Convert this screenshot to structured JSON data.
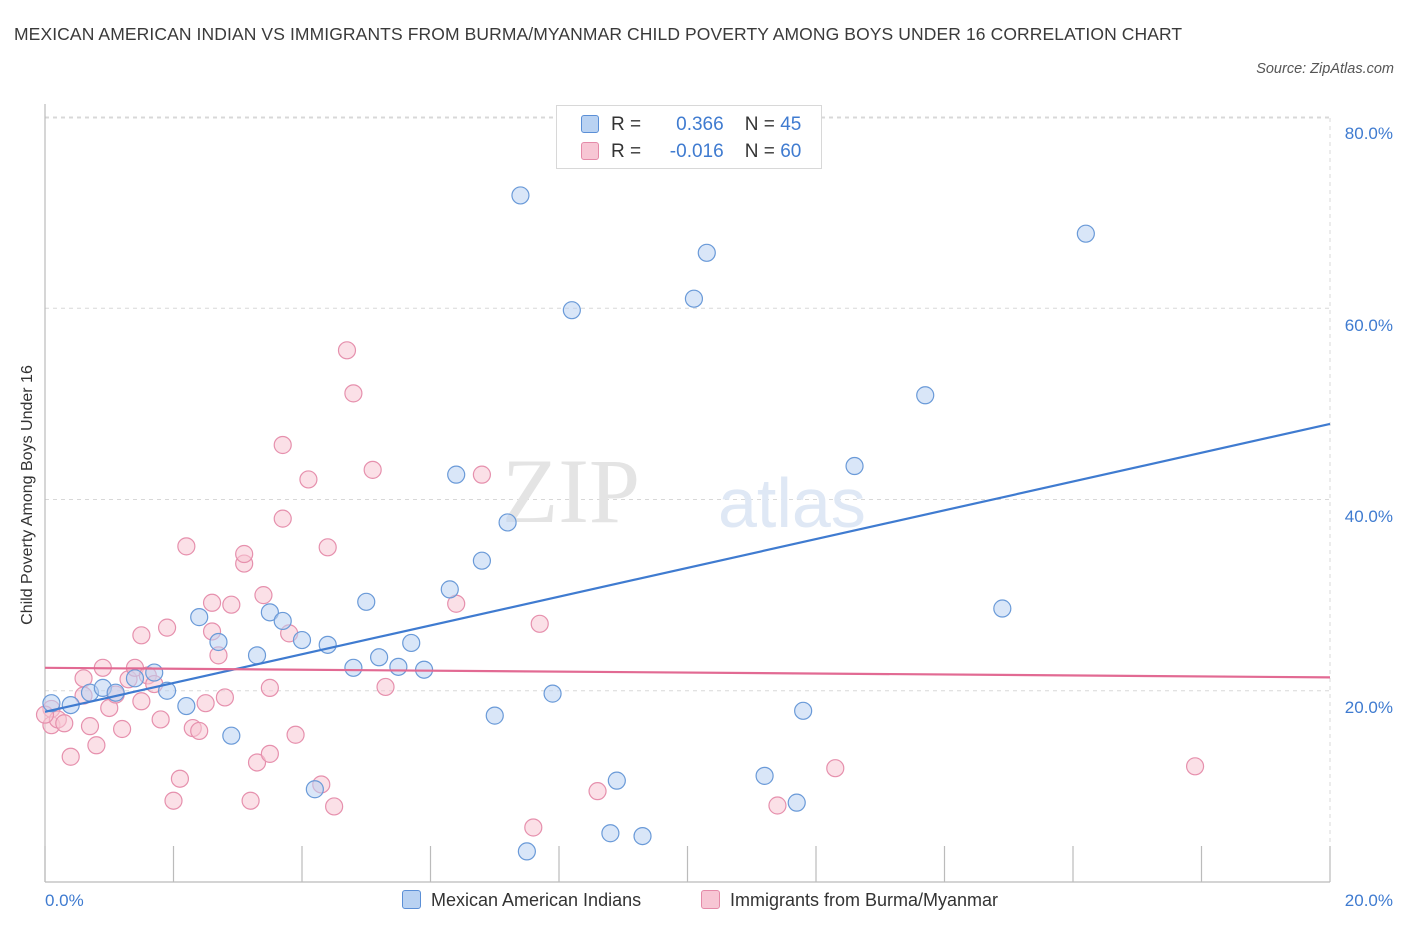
{
  "title": "MEXICAN AMERICAN INDIAN VS IMMIGRANTS FROM BURMA/MYANMAR CHILD POVERTY AMONG BOYS UNDER 16 CORRELATION CHART",
  "source": "Source: ZipAtlas.com",
  "watermark": {
    "zip": "ZIP",
    "atlas": "atlas"
  },
  "colors": {
    "blue": "#3f7bd0",
    "blue_fill": "#b9d2f2",
    "pink": "#e26a93",
    "pink_fill": "#f7c6d4",
    "grid": "#d8d8d8"
  },
  "legend_top": {
    "rows": [
      {
        "r_label": "R =",
        "r_value": "0.366",
        "n_label": "N =",
        "n_value": "45"
      },
      {
        "r_label": "R =",
        "r_value": "-0.016",
        "n_label": "N =",
        "n_value": "60"
      }
    ]
  },
  "legend_bottom": [
    "Mexican American Indians",
    "Immigrants from Burma/Myanmar"
  ],
  "chart_data": {
    "type": "scatter",
    "title": "MEXICAN AMERICAN INDIAN VS IMMIGRANTS FROM BURMA/MYANMAR CHILD POVERTY AMONG BOYS UNDER 16 CORRELATION CHART",
    "xlabel": "",
    "ylabel": "Child Poverty Among Boys Under 16",
    "xlim": [
      0,
      20
    ],
    "ylim": [
      0,
      80
    ],
    "x_tick_labels": [
      "0.0%",
      "20.0%"
    ],
    "y_tick_labels": [
      "20.0%",
      "40.0%",
      "60.0%",
      "80.0%"
    ],
    "y_ticks": [
      20,
      40,
      60,
      80
    ],
    "grid": true,
    "legend_position": "top-center",
    "series": [
      {
        "name": "Mexican American Indians",
        "color": "#3f7bd0",
        "trend": {
          "x": [
            0,
            20
          ],
          "y": [
            17.8,
            47.9
          ]
        },
        "points": [
          [
            0.1,
            18.7
          ],
          [
            0.4,
            18.5
          ],
          [
            0.7,
            19.8
          ],
          [
            0.9,
            20.3
          ],
          [
            1.1,
            19.8
          ],
          [
            1.4,
            21.3
          ],
          [
            1.7,
            21.9
          ],
          [
            1.9,
            20.0
          ],
          [
            2.2,
            18.4
          ],
          [
            2.4,
            27.7
          ],
          [
            2.7,
            25.1
          ],
          [
            2.9,
            15.3
          ],
          [
            3.3,
            23.7
          ],
          [
            3.5,
            28.2
          ],
          [
            3.7,
            27.3
          ],
          [
            4.0,
            25.3
          ],
          [
            4.2,
            9.7
          ],
          [
            4.4,
            24.8
          ],
          [
            4.8,
            22.4
          ],
          [
            5.0,
            29.3
          ],
          [
            5.2,
            23.5
          ],
          [
            5.5,
            22.5
          ],
          [
            5.7,
            25.0
          ],
          [
            5.9,
            22.2
          ],
          [
            6.3,
            30.6
          ],
          [
            6.4,
            42.6
          ],
          [
            6.8,
            33.6
          ],
          [
            7.0,
            17.4
          ],
          [
            7.2,
            37.6
          ],
          [
            7.4,
            71.8
          ],
          [
            7.5,
            3.2
          ],
          [
            7.9,
            19.7
          ],
          [
            8.2,
            59.8
          ],
          [
            8.8,
            5.1
          ],
          [
            8.9,
            10.6
          ],
          [
            9.3,
            4.8
          ],
          [
            10.1,
            61.0
          ],
          [
            10.3,
            65.8
          ],
          [
            11.2,
            11.1
          ],
          [
            11.7,
            8.3
          ],
          [
            11.8,
            17.9
          ],
          [
            12.6,
            43.5
          ],
          [
            13.7,
            50.9
          ],
          [
            14.9,
            28.6
          ],
          [
            16.2,
            67.8
          ]
        ]
      },
      {
        "name": "Immigrants from Burma/Myanmar",
        "color": "#e26a93",
        "trend": {
          "x": [
            0,
            20
          ],
          "y": [
            22.4,
            21.4
          ]
        },
        "points": [
          [
            0.1,
            18.1
          ],
          [
            0.1,
            16.4
          ],
          [
            0.2,
            17.0
          ],
          [
            0.3,
            16.6
          ],
          [
            0.4,
            13.1
          ],
          [
            0.6,
            19.5
          ],
          [
            0.6,
            21.3
          ],
          [
            0.7,
            16.3
          ],
          [
            0.8,
            14.3
          ],
          [
            0.9,
            22.4
          ],
          [
            1.0,
            18.2
          ],
          [
            1.1,
            19.6
          ],
          [
            1.2,
            16.0
          ],
          [
            1.3,
            21.2
          ],
          [
            1.4,
            22.4
          ],
          [
            1.5,
            18.9
          ],
          [
            1.5,
            25.8
          ],
          [
            1.6,
            21.6
          ],
          [
            1.7,
            20.7
          ],
          [
            1.8,
            17.0
          ],
          [
            1.9,
            26.6
          ],
          [
            2.0,
            8.5
          ],
          [
            2.1,
            10.8
          ],
          [
            2.2,
            35.1
          ],
          [
            2.3,
            16.1
          ],
          [
            2.4,
            15.8
          ],
          [
            2.5,
            18.7
          ],
          [
            2.6,
            29.2
          ],
          [
            2.6,
            26.2
          ],
          [
            2.7,
            23.7
          ],
          [
            2.8,
            19.3
          ],
          [
            2.9,
            29.0
          ],
          [
            3.1,
            33.3
          ],
          [
            3.1,
            34.3
          ],
          [
            3.2,
            8.5
          ],
          [
            3.3,
            12.5
          ],
          [
            3.4,
            30.0
          ],
          [
            3.5,
            20.3
          ],
          [
            3.5,
            13.4
          ],
          [
            3.7,
            38.0
          ],
          [
            3.7,
            45.7
          ],
          [
            3.8,
            26.0
          ],
          [
            3.9,
            15.4
          ],
          [
            4.1,
            42.1
          ],
          [
            4.3,
            10.2
          ],
          [
            4.4,
            35.0
          ],
          [
            4.5,
            7.9
          ],
          [
            4.7,
            55.6
          ],
          [
            4.8,
            51.1
          ],
          [
            5.1,
            43.1
          ],
          [
            5.3,
            20.4
          ],
          [
            6.4,
            29.1
          ],
          [
            6.8,
            42.6
          ],
          [
            7.6,
            5.7
          ],
          [
            7.7,
            27.0
          ],
          [
            8.6,
            9.5
          ],
          [
            11.4,
            8.0
          ],
          [
            12.3,
            11.9
          ],
          [
            17.9,
            12.1
          ],
          [
            0.0,
            17.5
          ]
        ]
      }
    ]
  }
}
